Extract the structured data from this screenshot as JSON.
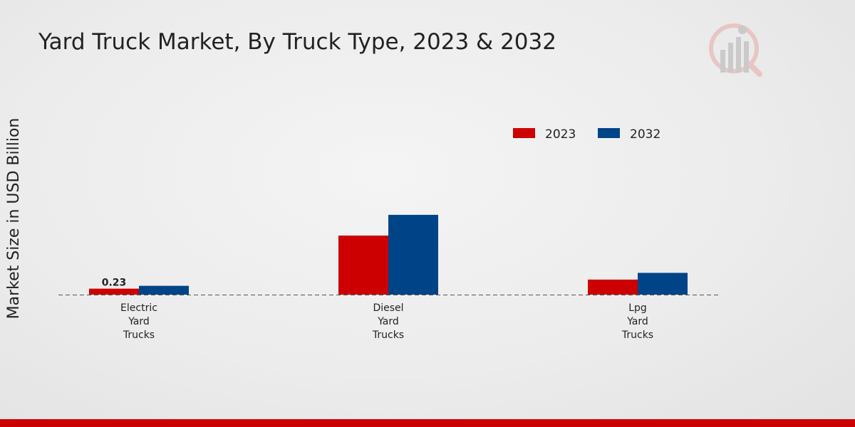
{
  "page": {
    "footer_color": "#cc0000"
  },
  "logo": {
    "icon": "market-research-logo-icon"
  },
  "chart_data": {
    "type": "bar",
    "title": "Yard Truck Market, By Truck Type, 2023 & 2032",
    "xlabel": "",
    "ylabel": "Market Size in USD Billion",
    "categories": [
      [
        "Electric",
        "Yard",
        "Trucks"
      ],
      [
        "Diesel",
        "Yard",
        "Trucks"
      ],
      [
        "Lpg",
        "Yard",
        "Trucks"
      ]
    ],
    "series": [
      {
        "name": "2023",
        "color": "#cc0000",
        "values": [
          0.23,
          2.28,
          0.58
        ]
      },
      {
        "name": "2032",
        "color": "#004488",
        "values": [
          0.34,
          3.08,
          0.84
        ]
      }
    ],
    "data_labels": [
      {
        "series": 0,
        "category": 0,
        "text": "0.23"
      }
    ],
    "ylim": [
      0,
      3.1
    ],
    "grid": false,
    "baseline": "dashed",
    "legend_position": "top-right"
  }
}
